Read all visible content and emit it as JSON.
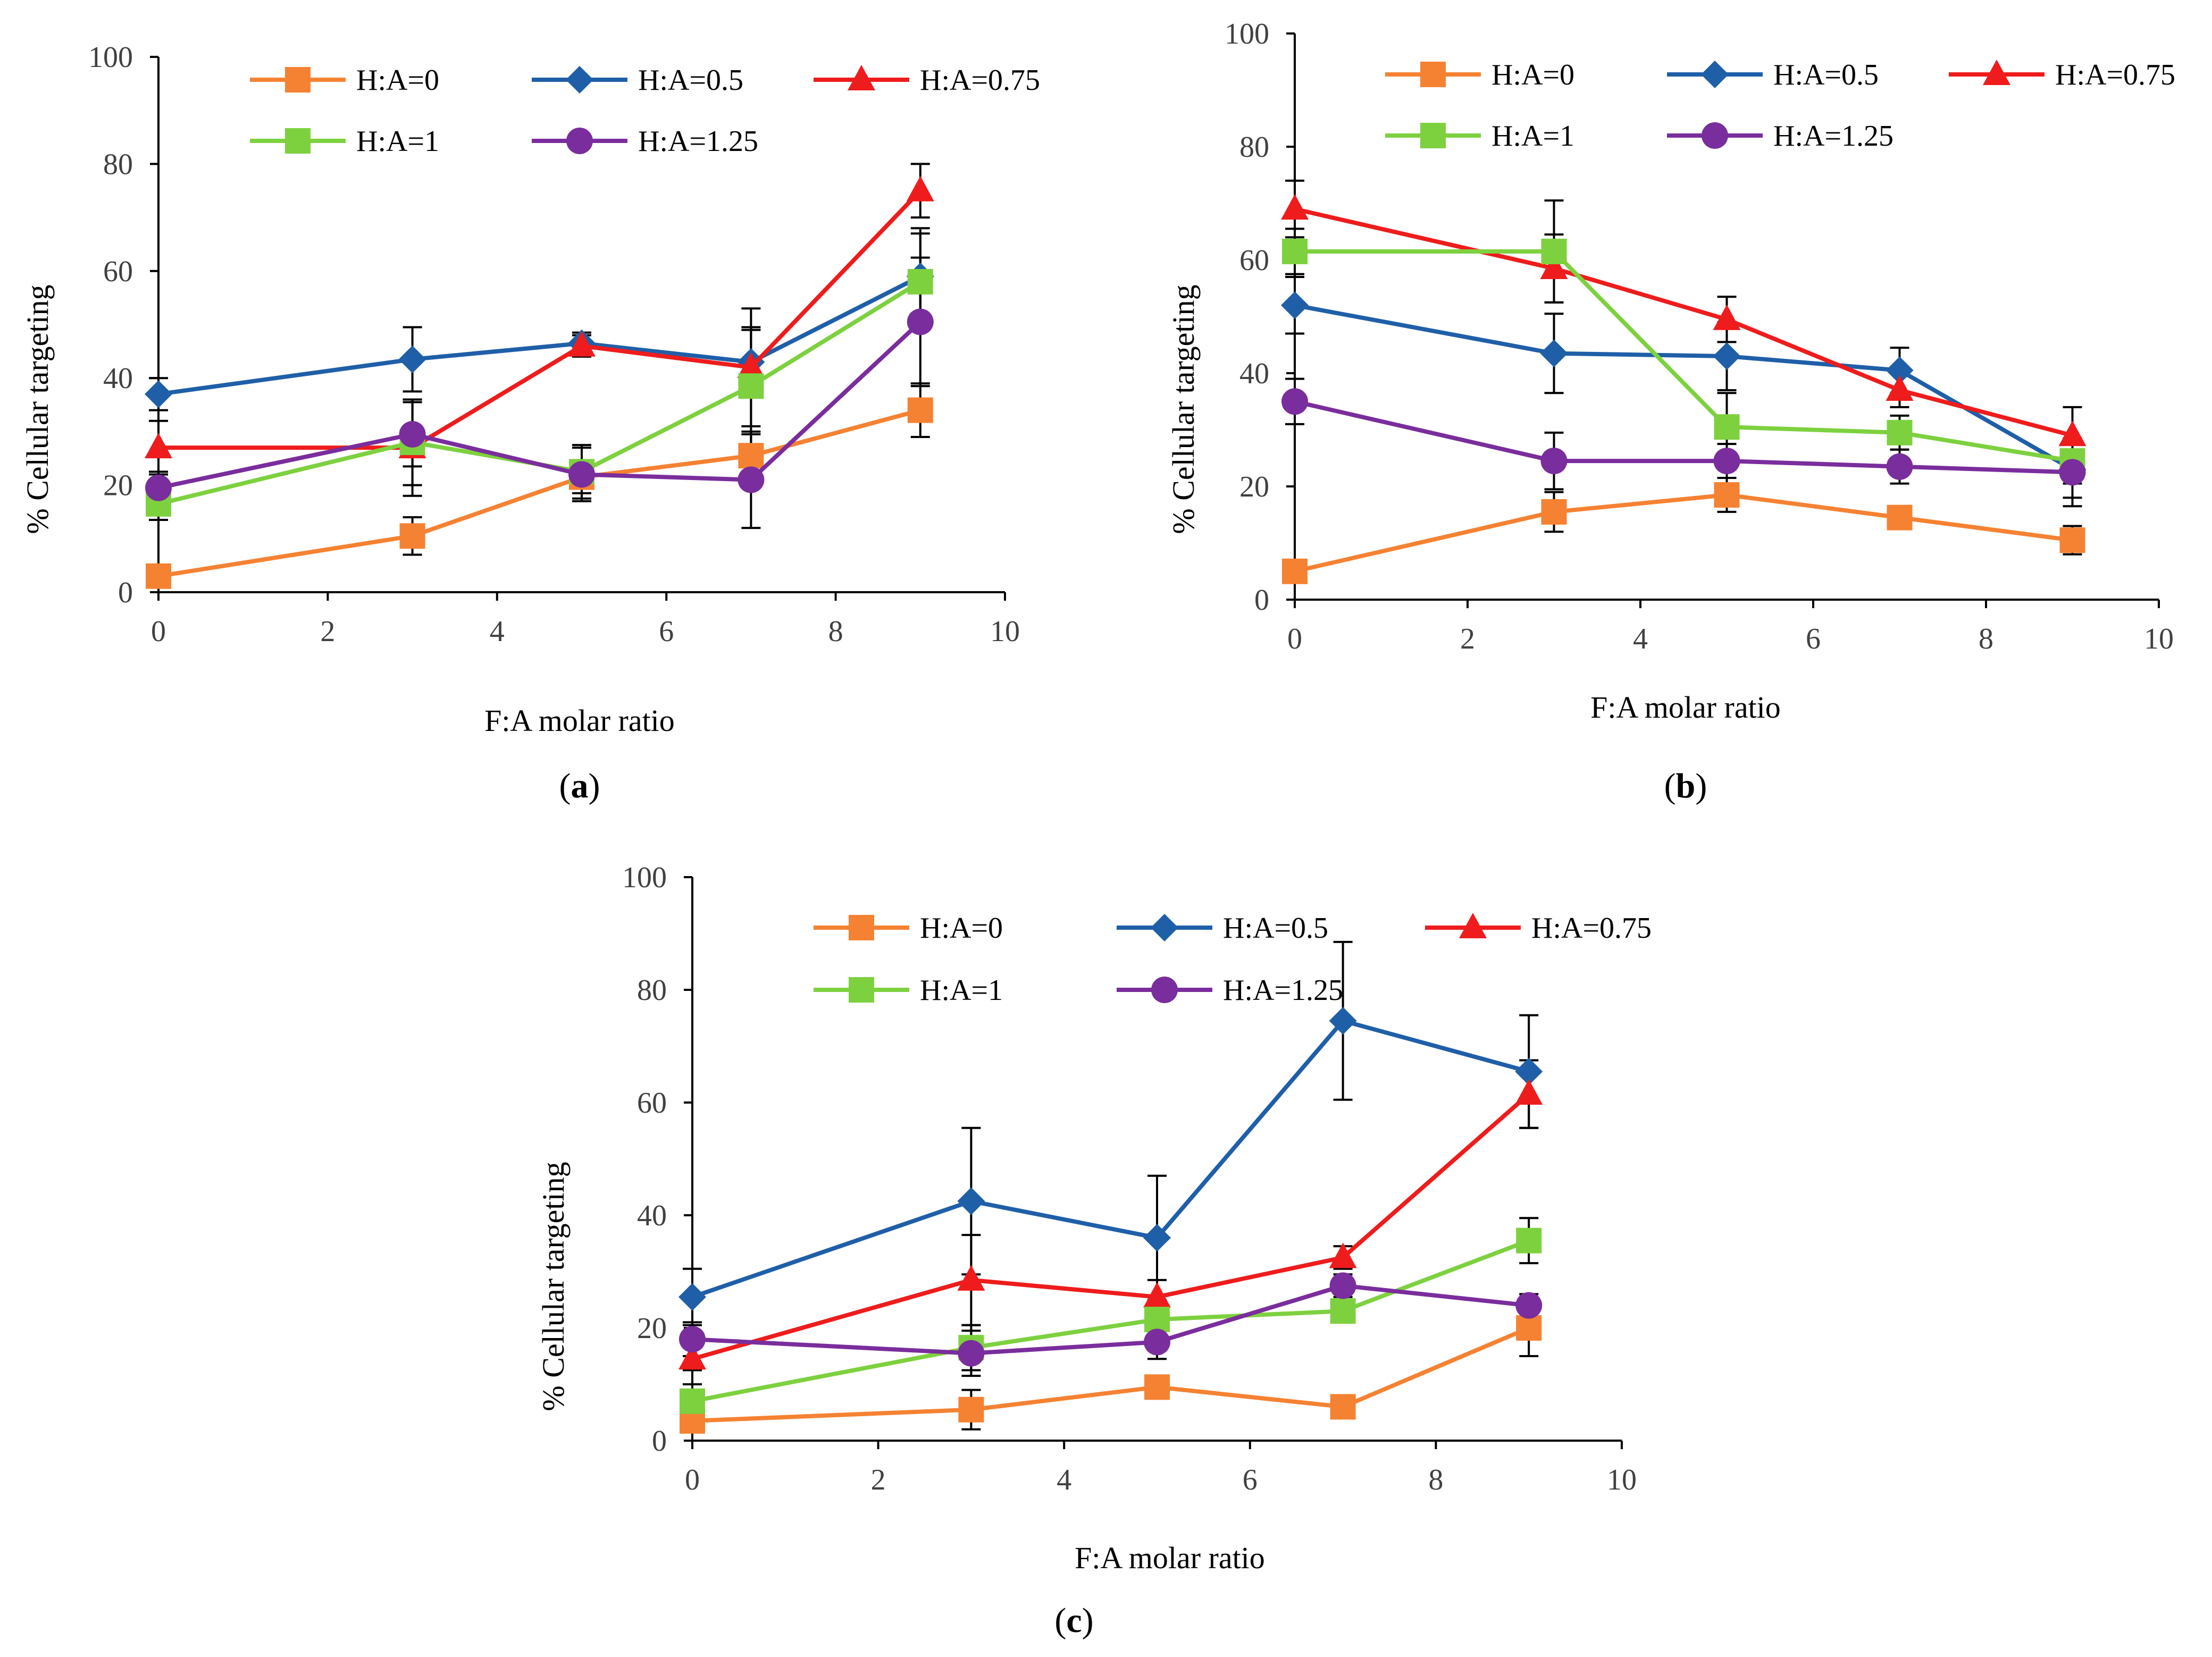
{
  "figure": {
    "panels": [
      "(a)",
      "(b)",
      "(c)"
    ]
  },
  "chart_data": [
    {
      "type": "line",
      "label": "(a)",
      "label_letter": "a",
      "xlabel": "F:A molar ratio",
      "ylabel": "% Cellular targeting",
      "xlim": [
        0,
        10
      ],
      "ylim": [
        0,
        100
      ],
      "xticks": [
        0,
        2,
        4,
        6,
        8,
        10
      ],
      "yticks": [
        0,
        20,
        40,
        60,
        80,
        100
      ],
      "legend_position": "top",
      "x": [
        0,
        3,
        5,
        7,
        9
      ],
      "series": [
        {
          "name": "H:A=0",
          "color": "#F58232",
          "marker": "square",
          "values": [
            3,
            10.5,
            21.5,
            25.5,
            34
          ],
          "errors": [
            1.5,
            3.5,
            3,
            4,
            5
          ]
        },
        {
          "name": "H:A=0.5",
          "color": "#1F5FA8",
          "marker": "diamond",
          "values": [
            37,
            43.5,
            46.5,
            43,
            59
          ],
          "errors": [
            3,
            6,
            2,
            6,
            9
          ]
        },
        {
          "name": "H:A=0.75",
          "color": "#EE1C1C",
          "marker": "triangle",
          "values": [
            27,
            27,
            46,
            42,
            75
          ],
          "errors": [
            5,
            9,
            2,
            11,
            5
          ]
        },
        {
          "name": "H:A=1",
          "color": "#7DD13F",
          "marker": "square",
          "values": [
            16.5,
            28,
            22.5,
            38.5,
            58
          ],
          "errors": [
            3,
            8,
            5,
            11,
            9
          ]
        },
        {
          "name": "H:A=1.25",
          "color": "#7A2D9C",
          "marker": "circle",
          "values": [
            19.5,
            29.5,
            22,
            21,
            50.5
          ],
          "errors": [
            3,
            6,
            5,
            9,
            12
          ]
        }
      ]
    },
    {
      "type": "line",
      "label": "(b)",
      "label_letter": "b",
      "xlabel": "F:A molar ratio",
      "ylabel": "% Cellular targeting",
      "xlim": [
        0,
        10
      ],
      "ylim": [
        0,
        100
      ],
      "xticks": [
        0,
        2,
        4,
        6,
        8,
        10
      ],
      "yticks": [
        0,
        20,
        40,
        60,
        80,
        100
      ],
      "legend_position": "top",
      "x": [
        0,
        3,
        5,
        7,
        9
      ],
      "series": [
        {
          "name": "H:A=0",
          "color": "#F58232",
          "marker": "square",
          "values": [
            5,
            15.5,
            18.5,
            14.5,
            10.5
          ],
          "errors": [
            1.5,
            3.5,
            3,
            2,
            2.5
          ]
        },
        {
          "name": "H:A=0.5",
          "color": "#1F5FA8",
          "marker": "diamond",
          "values": [
            52,
            43.5,
            43,
            40.5,
            23
          ],
          "errors": [
            5,
            7,
            6,
            4,
            5
          ]
        },
        {
          "name": "H:A=0.75",
          "color": "#EE1C1C",
          "marker": "triangle",
          "values": [
            69,
            58.5,
            49.5,
            37,
            29
          ],
          "errors": [
            5,
            6,
            4,
            3,
            5
          ]
        },
        {
          "name": "H:A=1",
          "color": "#7DD13F",
          "marker": "square",
          "values": [
            61.5,
            61.5,
            30.5,
            29.5,
            24.5
          ],
          "errors": [
            4,
            9,
            6,
            3,
            4
          ]
        },
        {
          "name": "H:A=1.25",
          "color": "#7A2D9C",
          "marker": "circle",
          "values": [
            35,
            24.5,
            24.5,
            23.5,
            22.5
          ],
          "errors": [
            4,
            5,
            3,
            3,
            6
          ]
        }
      ]
    },
    {
      "type": "line",
      "label": "(c)",
      "label_letter": "c",
      "xlabel": "F:A molar ratio",
      "ylabel": "% Cellular targeting",
      "xlim": [
        0,
        10
      ],
      "ylim": [
        0,
        100
      ],
      "xticks": [
        0,
        2,
        4,
        6,
        8,
        10
      ],
      "yticks": [
        0,
        20,
        40,
        60,
        80,
        100
      ],
      "legend_position": "top",
      "x": [
        0,
        3,
        5,
        7,
        9
      ],
      "series": [
        {
          "name": "H:A=0",
          "color": "#F58232",
          "marker": "square",
          "values": [
            3.5,
            5.5,
            9.5,
            6,
            20
          ],
          "errors": [
            1.5,
            3.5,
            2,
            1,
            5
          ]
        },
        {
          "name": "H:A=0.5",
          "color": "#1F5FA8",
          "marker": "diamond",
          "values": [
            25.5,
            42.5,
            36,
            74.5,
            65.5
          ],
          "errors": [
            5,
            13,
            11,
            14,
            10
          ]
        },
        {
          "name": "H:A=0.75",
          "color": "#EE1C1C",
          "marker": "triangle",
          "values": [
            14.5,
            28.5,
            25.5,
            32.5,
            61.5
          ],
          "errors": [
            2,
            8,
            3,
            2,
            6
          ]
        },
        {
          "name": "H:A=1",
          "color": "#7DD13F",
          "marker": "square",
          "values": [
            7,
            16.5,
            21.5,
            23,
            35.5
          ],
          "errors": [
            3,
            4,
            3,
            2,
            4
          ]
        },
        {
          "name": "H:A=1.25",
          "color": "#7A2D9C",
          "marker": "circle",
          "values": [
            18,
            15.5,
            17.5,
            27.5,
            24
          ],
          "errors": [
            3,
            4,
            3,
            2,
            2
          ]
        }
      ]
    }
  ]
}
